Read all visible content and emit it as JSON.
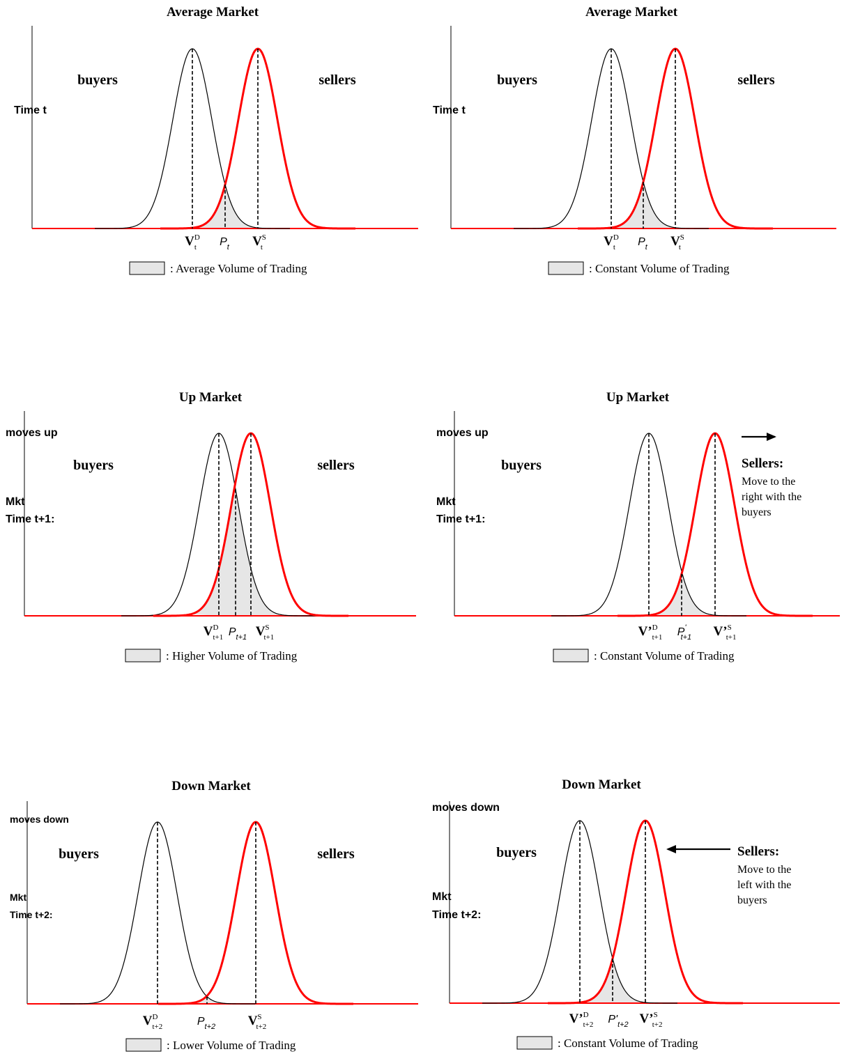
{
  "colors": {
    "buyers": "#000000",
    "sellers": "#ff0000",
    "volume_fill": "#e6e6e6"
  },
  "panels": [
    {
      "title": "Average Market",
      "left_label_lines": [
        "Time t"
      ],
      "buyers_label": "buyers",
      "sellers_label": "sellers",
      "sellers_note": null,
      "arrow": null,
      "tick_labels": [
        {
          "main": "V",
          "sup": "D",
          "sub": "t"
        },
        {
          "main": "P",
          "sup": "",
          "sub": "t"
        },
        {
          "main": "V",
          "sup": "S",
          "sub": "t"
        }
      ],
      "legend_text": ": Average Volume of Trading"
    },
    {
      "title": "Average Market",
      "left_label_lines": [
        "Time t"
      ],
      "buyers_label": "buyers",
      "sellers_label": "sellers",
      "sellers_note": null,
      "arrow": null,
      "tick_labels": [
        {
          "main": "V",
          "sup": "D",
          "sub": "t"
        },
        {
          "main": "P",
          "sup": "",
          "sub": "t"
        },
        {
          "main": "V",
          "sup": "S",
          "sub": "t"
        }
      ],
      "legend_text": ": Constant Volume of Trading"
    },
    {
      "title": "Up Market",
      "left_label_lines": [
        "moves up",
        "Mkt",
        "Time t+1:"
      ],
      "buyers_label": "buyers",
      "sellers_label": "sellers",
      "sellers_note": null,
      "arrow": null,
      "tick_labels": [
        {
          "main": "V",
          "sup": "D",
          "sub": "t+1"
        },
        {
          "main": "P",
          "sup": "",
          "sub": "t+1"
        },
        {
          "main": "V",
          "sup": "S",
          "sub": "t+1"
        }
      ],
      "legend_text": ": Higher Volume of Trading"
    },
    {
      "title": "Up Market",
      "left_label_lines": [
        "moves up",
        "Mkt",
        "Time t+1:"
      ],
      "buyers_label": "buyers",
      "sellers_label": null,
      "sellers_note": {
        "heading": "Sellers:",
        "lines": [
          "Move to the",
          "right with the",
          "buyers"
        ]
      },
      "arrow": "right",
      "tick_labels": [
        {
          "main": "V’",
          "sup": "D",
          "sub": "t+1"
        },
        {
          "main": "P",
          "sup": "'",
          "sub": "t+1"
        },
        {
          "main": "V’",
          "sup": "S",
          "sub": "t+1"
        }
      ],
      "legend_text": ": Constant Volume of Trading"
    },
    {
      "title": "Down Market",
      "left_label_lines": [
        "moves down",
        "Mkt",
        "Time t+2:"
      ],
      "buyers_label": "buyers",
      "sellers_label": "sellers",
      "sellers_note": null,
      "arrow": null,
      "tick_labels": [
        {
          "main": "V",
          "sup": "D",
          "sub": "t+2"
        },
        {
          "main": "P",
          "sup": "",
          "sub": "t+2"
        },
        {
          "main": "V",
          "sup": "S",
          "sub": "t+2"
        }
      ],
      "legend_text": ": Lower Volume of Trading"
    },
    {
      "title": "Down Market",
      "left_label_lines": [
        "moves down",
        "Mkt",
        "Time t+2:"
      ],
      "buyers_label": "buyers",
      "sellers_label": null,
      "sellers_note": {
        "heading": "Sellers:",
        "lines": [
          "Move to the",
          "left with the",
          "buyers"
        ]
      },
      "arrow": "left",
      "tick_labels": [
        {
          "main": "V’",
          "sup": "D",
          "sub": "t+2"
        },
        {
          "main": "P'",
          "sup": "",
          "sub": "t+2"
        },
        {
          "main": "V’",
          "sup": "S",
          "sub": "t+2"
        }
      ],
      "legend_text": ": Constant Volume of Trading"
    }
  ]
}
